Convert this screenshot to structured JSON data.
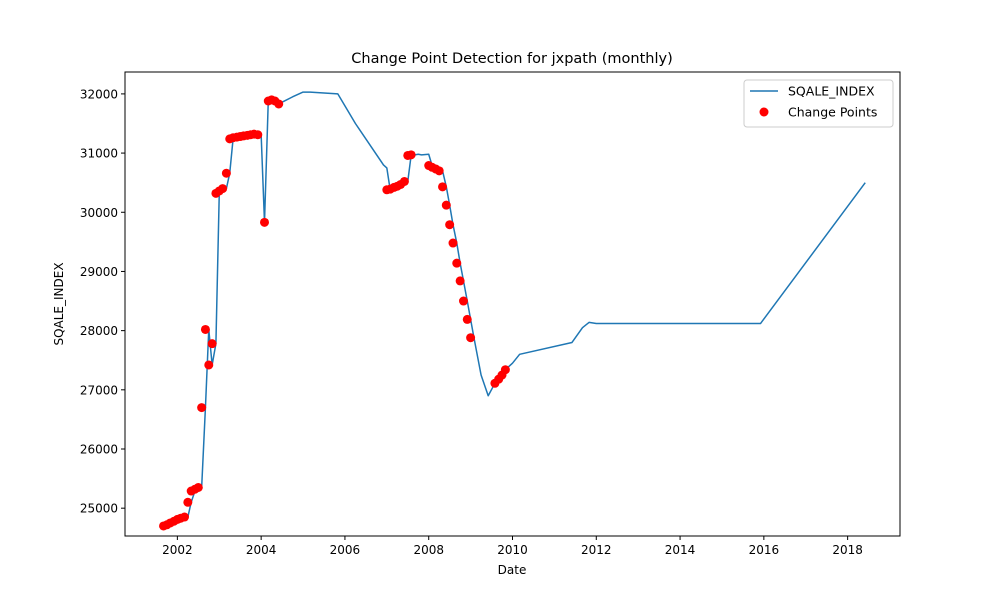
{
  "chart_data": {
    "type": "line",
    "title": "Change Point Detection for jxpath (monthly)",
    "xlabel": "Date",
    "ylabel": "SQALE_INDEX",
    "xlim": [
      2000.75,
      2019.25
    ],
    "ylim": [
      24530,
      32370
    ],
    "x_ticks": [
      2002,
      2004,
      2006,
      2008,
      2010,
      2012,
      2014,
      2016,
      2018
    ],
    "y_ticks": [
      25000,
      26000,
      27000,
      28000,
      29000,
      30000,
      31000,
      32000
    ],
    "grid": false,
    "legend": {
      "placement": "top-right",
      "entries": [
        "SQALE_INDEX",
        "Change Points"
      ]
    },
    "colors": {
      "line": "#1f77b4",
      "points": "#ff0000"
    },
    "series": [
      {
        "name": "SQALE_INDEX",
        "kind": "line",
        "x": [
          2001.67,
          2001.75,
          2001.83,
          2001.92,
          2002.0,
          2002.08,
          2002.17,
          2002.25,
          2002.33,
          2002.42,
          2002.5,
          2002.58,
          2002.67,
          2002.75,
          2002.83,
          2002.92,
          2003.0,
          2003.08,
          2003.17,
          2003.25,
          2003.33,
          2003.42,
          2003.5,
          2003.58,
          2003.67,
          2003.75,
          2003.83,
          2003.92,
          2004.0,
          2004.08,
          2004.17,
          2004.25,
          2004.33,
          2004.42,
          2004.5,
          2004.75,
          2005.0,
          2005.17,
          2005.83,
          2006.25,
          2006.92,
          2007.0,
          2007.08,
          2007.17,
          2007.25,
          2007.33,
          2007.42,
          2007.5,
          2007.58,
          2007.67,
          2007.75,
          2007.83,
          2008.0,
          2008.08,
          2008.17,
          2008.25,
          2008.33,
          2008.42,
          2008.5,
          2008.58,
          2008.67,
          2008.75,
          2008.83,
          2008.92,
          2009.0,
          2009.08,
          2009.25,
          2009.42,
          2009.58,
          2009.67,
          2009.75,
          2009.83,
          2010.0,
          2010.17,
          2011.42,
          2011.67,
          2011.83,
          2012.0,
          2015.92,
          2018.42
        ],
        "y": [
          24700,
          24720,
          24750,
          24780,
          24810,
          24830,
          24850,
          24850,
          25100,
          25290,
          25320,
          25350,
          26700,
          28020,
          27420,
          27780,
          30320,
          30360,
          30400,
          30660,
          31240,
          31260,
          31270,
          31280,
          31290,
          31300,
          31310,
          31320,
          31310,
          29830,
          31880,
          31900,
          31880,
          31830,
          31860,
          31950,
          32030,
          32030,
          32000,
          31500,
          30800,
          30750,
          30380,
          30390,
          30420,
          30440,
          30470,
          30520,
          30960,
          30970,
          30980,
          30970,
          30980,
          30790,
          30760,
          30730,
          30700,
          30430,
          30120,
          29790,
          29480,
          29140,
          28840,
          28500,
          28190,
          27880,
          27250,
          26900,
          27110,
          27180,
          27250,
          27340,
          27450,
          27600,
          27800,
          28050,
          28140,
          28120,
          28120,
          30500
        ]
      },
      {
        "name": "Change Points",
        "kind": "scatter",
        "x": [
          2001.67,
          2001.75,
          2001.83,
          2001.92,
          2002.0,
          2002.08,
          2002.17,
          2002.25,
          2002.33,
          2002.42,
          2002.5,
          2002.58,
          2002.67,
          2002.75,
          2002.83,
          2002.92,
          2003.0,
          2003.08,
          2003.17,
          2003.25,
          2003.33,
          2003.42,
          2003.5,
          2003.58,
          2003.67,
          2003.75,
          2003.83,
          2003.92,
          2004.08,
          2004.17,
          2004.25,
          2004.33,
          2004.42,
          2007.0,
          2007.08,
          2007.17,
          2007.25,
          2007.33,
          2007.42,
          2007.5,
          2007.58,
          2008.0,
          2008.08,
          2008.17,
          2008.25,
          2008.33,
          2008.42,
          2008.5,
          2008.58,
          2008.67,
          2008.75,
          2008.83,
          2008.92,
          2009.0,
          2009.58,
          2009.67,
          2009.75,
          2009.83
        ],
        "y": [
          24700,
          24720,
          24750,
          24780,
          24810,
          24830,
          24850,
          25100,
          25290,
          25320,
          25350,
          26700,
          28020,
          27420,
          27780,
          30320,
          30360,
          30400,
          30660,
          31240,
          31260,
          31270,
          31280,
          31290,
          31300,
          31310,
          31320,
          31310,
          29830,
          31880,
          31900,
          31880,
          31830,
          30380,
          30390,
          30420,
          30440,
          30470,
          30520,
          30960,
          30970,
          30790,
          30760,
          30730,
          30700,
          30430,
          30120,
          29790,
          29480,
          29140,
          28840,
          28500,
          28190,
          27880,
          27110,
          27180,
          27250,
          27340
        ]
      }
    ]
  }
}
